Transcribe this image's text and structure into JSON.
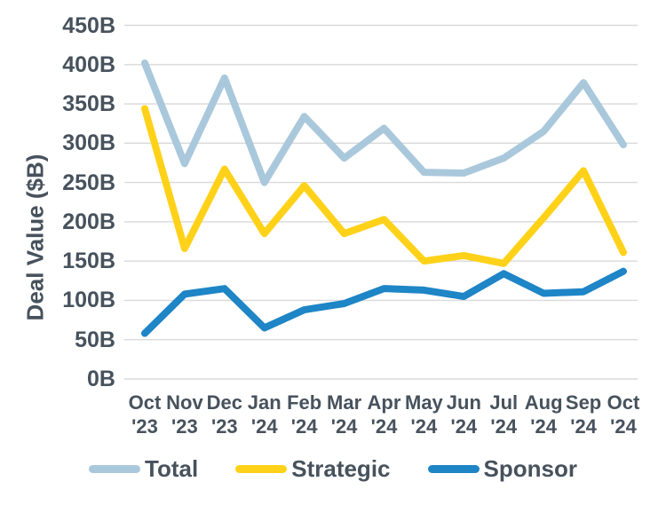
{
  "colors": {
    "text": "#47525D",
    "grid": "#D9D9D9",
    "background": "#FFFFFF",
    "total_line": "#AAC8DC",
    "strategic_line": "#FFD219",
    "sponsor_line": "#1E85C6"
  },
  "chart_data": {
    "type": "line",
    "title": "",
    "xlabel": "",
    "ylabel": "Deal Value ($B)",
    "ylim": [
      0,
      450
    ],
    "ytick_step": 50,
    "grid": true,
    "legend_position": "bottom",
    "yticks": [
      {
        "value": 450,
        "label": "450B"
      },
      {
        "value": 400,
        "label": "400B"
      },
      {
        "value": 350,
        "label": "350B"
      },
      {
        "value": 300,
        "label": "300B"
      },
      {
        "value": 250,
        "label": "250B"
      },
      {
        "value": 200,
        "label": "200B"
      },
      {
        "value": 150,
        "label": "150B"
      },
      {
        "value": 100,
        "label": "100B"
      },
      {
        "value": 50,
        "label": "50B"
      },
      {
        "value": 0,
        "label": "0B"
      }
    ],
    "categories": [
      {
        "month": "Oct",
        "year": "'23"
      },
      {
        "month": "Nov",
        "year": "'23"
      },
      {
        "month": "Dec",
        "year": "'23"
      },
      {
        "month": "Jan",
        "year": "'24"
      },
      {
        "month": "Feb",
        "year": "'24"
      },
      {
        "month": "Mar",
        "year": "'24"
      },
      {
        "month": "Apr",
        "year": "'24"
      },
      {
        "month": "May",
        "year": "'24"
      },
      {
        "month": "Jun",
        "year": "'24"
      },
      {
        "month": "Jul",
        "year": "'24"
      },
      {
        "month": "Aug",
        "year": "'24"
      },
      {
        "month": "Sep",
        "year": "'24"
      },
      {
        "month": "Oct",
        "year": "'24"
      }
    ],
    "series": [
      {
        "name": "Total",
        "color": "#AAC8DC",
        "values": [
          402,
          274,
          383,
          250,
          334,
          281,
          319,
          263,
          262,
          281,
          315,
          377,
          298
        ]
      },
      {
        "name": "Strategic",
        "color": "#FFD219",
        "values": [
          344,
          166,
          267,
          185,
          246,
          185,
          203,
          150,
          157,
          147,
          205,
          265,
          161
        ]
      },
      {
        "name": "Sponsor",
        "color": "#1E85C6",
        "values": [
          58,
          108,
          115,
          65,
          88,
          96,
          115,
          113,
          105,
          134,
          109,
          111,
          137
        ]
      }
    ]
  }
}
